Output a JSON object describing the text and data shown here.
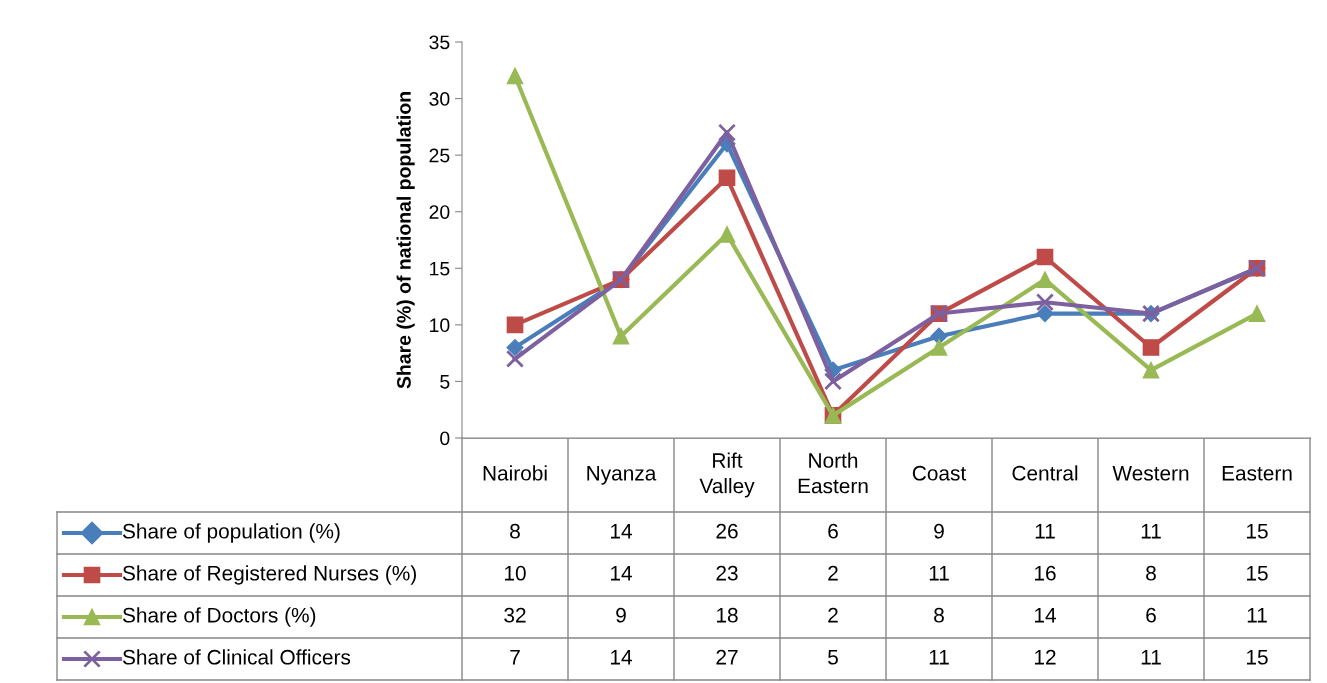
{
  "chart_data": {
    "type": "line",
    "ylabel": "Share (%) of national population",
    "categories": [
      "Nairobi",
      "Nyanza",
      "Rift Valley",
      "North Eastern",
      "Coast",
      "Central",
      "Western",
      "Eastern"
    ],
    "series": [
      {
        "name": "Share of population (%)",
        "color": "#4a7ebb",
        "marker": "diamond",
        "values": [
          8,
          14,
          26,
          6,
          9,
          11,
          11,
          15
        ]
      },
      {
        "name": "Share of Registered Nurses (%)",
        "color": "#be4b48",
        "marker": "square",
        "values": [
          10,
          14,
          23,
          2,
          11,
          16,
          8,
          15
        ]
      },
      {
        "name": "Share of Doctors (%)",
        "color": "#98b954",
        "marker": "triangle",
        "values": [
          32,
          9,
          18,
          2,
          8,
          14,
          6,
          11
        ]
      },
      {
        "name": "Share of Clinical Officers",
        "color": "#7d60a0",
        "marker": "cross",
        "values": [
          7,
          14,
          27,
          5,
          11,
          12,
          11,
          15
        ]
      }
    ],
    "ylim": [
      0,
      35
    ],
    "yticks": [
      0,
      5,
      10,
      15,
      20,
      25,
      30,
      35
    ],
    "grid": false,
    "data_labels": true,
    "legend": "bottom left"
  }
}
